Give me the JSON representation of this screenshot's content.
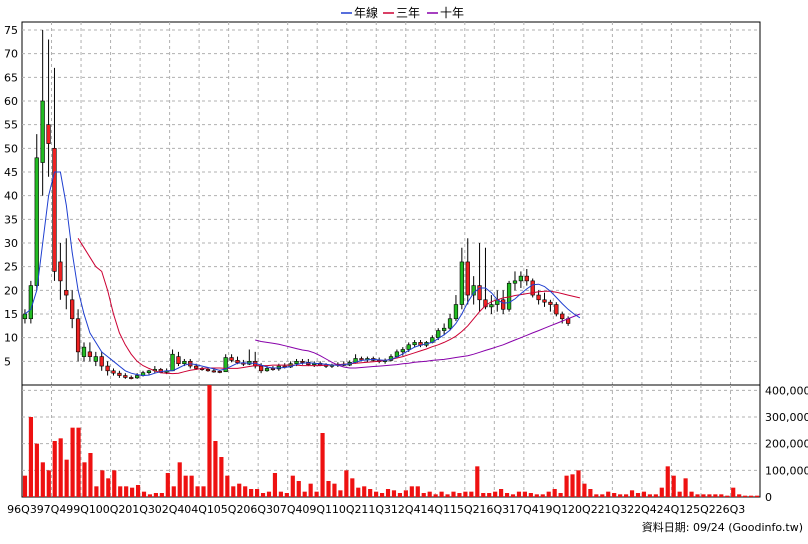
{
  "chart_data": {
    "type": "candlestick+bar",
    "legend": [
      "年線",
      "三年",
      "十年"
    ],
    "legend_colors": [
      "#1f3fd0",
      "#cc0033",
      "#8800aa"
    ],
    "price_axis": {
      "min": 0,
      "max": 75,
      "step": 5,
      "ticks": [
        "5",
        "10",
        "15",
        "20",
        "25",
        "30",
        "35",
        "40",
        "45",
        "50",
        "55",
        "60",
        "65",
        "70",
        "75"
      ]
    },
    "volume_axis": {
      "min": 0,
      "max": 400000,
      "step": 100000,
      "ticks": [
        "0",
        "100,000",
        "200,000",
        "300,000",
        "400,000"
      ]
    },
    "x_labels": [
      "96Q3",
      "97Q4",
      "99Q1",
      "00Q2",
      "01Q3",
      "02Q4",
      "04Q1",
      "05Q2",
      "06Q3",
      "07Q4",
      "09Q1",
      "10Q2",
      "11Q3",
      "12Q4",
      "14Q1",
      "15Q2",
      "16Q3",
      "17Q4",
      "19Q1",
      "20Q2",
      "21Q3",
      "22Q4",
      "24Q1",
      "25Q2",
      "26Q3"
    ],
    "quarters_per_label": 5,
    "candles": [
      {
        "o": 14,
        "h": 16,
        "l": 13,
        "c": 15
      },
      {
        "o": 14,
        "h": 22,
        "l": 13,
        "c": 21
      },
      {
        "o": 21,
        "h": 53,
        "l": 20,
        "c": 48
      },
      {
        "o": 47,
        "h": 75,
        "l": 40,
        "c": 60
      },
      {
        "o": 55,
        "h": 73,
        "l": 44,
        "c": 51
      },
      {
        "o": 50,
        "h": 67,
        "l": 22,
        "c": 24
      },
      {
        "o": 26,
        "h": 30,
        "l": 18,
        "c": 22
      },
      {
        "o": 20,
        "h": 31,
        "l": 16,
        "c": 19
      },
      {
        "o": 18,
        "h": 20,
        "l": 12,
        "c": 14
      },
      {
        "o": 14,
        "h": 16,
        "l": 5,
        "c": 7
      },
      {
        "o": 6,
        "h": 9,
        "l": 5,
        "c": 8
      },
      {
        "o": 7,
        "h": 9,
        "l": 5,
        "c": 6
      },
      {
        "o": 5,
        "h": 7,
        "l": 4,
        "c": 6
      },
      {
        "o": 6,
        "h": 7,
        "l": 3,
        "c": 4
      },
      {
        "o": 4,
        "h": 5,
        "l": 2,
        "c": 3
      },
      {
        "o": 3,
        "h": 3.5,
        "l": 2,
        "c": 2.5
      },
      {
        "o": 2.5,
        "h": 3,
        "l": 1.5,
        "c": 2
      },
      {
        "o": 2,
        "h": 2.5,
        "l": 1.3,
        "c": 1.6
      },
      {
        "o": 1.6,
        "h": 2,
        "l": 1.2,
        "c": 1.5
      },
      {
        "o": 1.5,
        "h": 2.5,
        "l": 1.3,
        "c": 2
      },
      {
        "o": 2,
        "h": 3,
        "l": 1.8,
        "c": 2.6
      },
      {
        "o": 2.6,
        "h": 3.2,
        "l": 2.2,
        "c": 3
      },
      {
        "o": 3,
        "h": 4,
        "l": 2.5,
        "c": 3.3
      },
      {
        "o": 3.3,
        "h": 3.6,
        "l": 2.5,
        "c": 2.7
      },
      {
        "o": 2.7,
        "h": 3.5,
        "l": 2.3,
        "c": 3
      },
      {
        "o": 3,
        "h": 7.5,
        "l": 3,
        "c": 6.5
      },
      {
        "o": 6,
        "h": 7,
        "l": 4,
        "c": 4.5
      },
      {
        "o": 4.5,
        "h": 5.5,
        "l": 4,
        "c": 5
      },
      {
        "o": 5,
        "h": 5.5,
        "l": 3.5,
        "c": 4
      },
      {
        "o": 4,
        "h": 4.5,
        "l": 3.2,
        "c": 3.5
      },
      {
        "o": 3.5,
        "h": 3.8,
        "l": 3,
        "c": 3.3
      },
      {
        "o": 3.3,
        "h": 3.6,
        "l": 2.8,
        "c": 3
      },
      {
        "o": 3,
        "h": 3.4,
        "l": 2.6,
        "c": 2.9
      },
      {
        "o": 2.9,
        "h": 3.2,
        "l": 2.5,
        "c": 2.8
      },
      {
        "o": 2.8,
        "h": 6.5,
        "l": 2.8,
        "c": 5.8
      },
      {
        "o": 5.8,
        "h": 6.5,
        "l": 4.8,
        "c": 5.2
      },
      {
        "o": 5.2,
        "h": 6,
        "l": 4.4,
        "c": 4.7
      },
      {
        "o": 4.7,
        "h": 5.3,
        "l": 4,
        "c": 4.4
      },
      {
        "o": 4.4,
        "h": 7.5,
        "l": 4.2,
        "c": 5
      },
      {
        "o": 5,
        "h": 7,
        "l": 3.5,
        "c": 4
      },
      {
        "o": 4,
        "h": 4.6,
        "l": 2.5,
        "c": 3
      },
      {
        "o": 3,
        "h": 4,
        "l": 2.8,
        "c": 3.5
      },
      {
        "o": 3.5,
        "h": 4,
        "l": 3,
        "c": 3.4
      },
      {
        "o": 3.4,
        "h": 4.5,
        "l": 3,
        "c": 4
      },
      {
        "o": 4,
        "h": 4.6,
        "l": 3.5,
        "c": 3.8
      },
      {
        "o": 3.8,
        "h": 5,
        "l": 3.6,
        "c": 4.5
      },
      {
        "o": 4.5,
        "h": 5.5,
        "l": 4,
        "c": 5
      },
      {
        "o": 5,
        "h": 5.5,
        "l": 4.3,
        "c": 4.8
      },
      {
        "o": 4.8,
        "h": 5.5,
        "l": 4,
        "c": 4.3
      },
      {
        "o": 4.3,
        "h": 5,
        "l": 3.8,
        "c": 4.6
      },
      {
        "o": 4.6,
        "h": 5,
        "l": 4,
        "c": 4.2
      },
      {
        "o": 4.2,
        "h": 4.6,
        "l": 3.6,
        "c": 4
      },
      {
        "o": 4,
        "h": 4.5,
        "l": 3.6,
        "c": 4.2
      },
      {
        "o": 4.2,
        "h": 4.8,
        "l": 3.8,
        "c": 4.4
      },
      {
        "o": 4.4,
        "h": 5,
        "l": 4,
        "c": 4.2
      },
      {
        "o": 4.2,
        "h": 5.2,
        "l": 4,
        "c": 4.8
      },
      {
        "o": 4.8,
        "h": 6.5,
        "l": 4.5,
        "c": 5.6
      },
      {
        "o": 5.6,
        "h": 6,
        "l": 5,
        "c": 5.3
      },
      {
        "o": 5.3,
        "h": 6,
        "l": 4.8,
        "c": 5.6
      },
      {
        "o": 5.6,
        "h": 6,
        "l": 5,
        "c": 5.2
      },
      {
        "o": 5.2,
        "h": 5.8,
        "l": 4.6,
        "c": 5
      },
      {
        "o": 5,
        "h": 5.6,
        "l": 4.5,
        "c": 5.2
      },
      {
        "o": 5.2,
        "h": 6.5,
        "l": 5,
        "c": 6
      },
      {
        "o": 6,
        "h": 7.5,
        "l": 5.6,
        "c": 7
      },
      {
        "o": 7,
        "h": 8,
        "l": 6.2,
        "c": 7.5
      },
      {
        "o": 7.5,
        "h": 9,
        "l": 7,
        "c": 8.5
      },
      {
        "o": 8.5,
        "h": 9.5,
        "l": 8,
        "c": 9
      },
      {
        "o": 9,
        "h": 9.5,
        "l": 8,
        "c": 8.4
      },
      {
        "o": 8.4,
        "h": 9.3,
        "l": 8,
        "c": 9
      },
      {
        "o": 9,
        "h": 10.5,
        "l": 8.8,
        "c": 10
      },
      {
        "o": 10,
        "h": 12,
        "l": 9.5,
        "c": 11.5
      },
      {
        "o": 11.5,
        "h": 13,
        "l": 10.5,
        "c": 12
      },
      {
        "o": 12,
        "h": 15,
        "l": 11.5,
        "c": 14
      },
      {
        "o": 14,
        "h": 19,
        "l": 13.5,
        "c": 17
      },
      {
        "o": 17,
        "h": 29,
        "l": 16,
        "c": 26
      },
      {
        "o": 26,
        "h": 31,
        "l": 17,
        "c": 19
      },
      {
        "o": 19,
        "h": 23,
        "l": 17,
        "c": 21
      },
      {
        "o": 21,
        "h": 30,
        "l": 15.5,
        "c": 18
      },
      {
        "o": 18,
        "h": 29,
        "l": 16,
        "c": 16.5
      },
      {
        "o": 16.5,
        "h": 19,
        "l": 15,
        "c": 17
      },
      {
        "o": 17,
        "h": 20,
        "l": 15.5,
        "c": 18
      },
      {
        "o": 18,
        "h": 20,
        "l": 15,
        "c": 16
      },
      {
        "o": 16,
        "h": 22,
        "l": 15.5,
        "c": 21.5
      },
      {
        "o": 21.5,
        "h": 24,
        "l": 20,
        "c": 22
      },
      {
        "o": 22,
        "h": 24,
        "l": 20.5,
        "c": 23
      },
      {
        "o": 23,
        "h": 24.5,
        "l": 21,
        "c": 22
      },
      {
        "o": 22,
        "h": 22.5,
        "l": 18.5,
        "c": 19
      },
      {
        "o": 19,
        "h": 20,
        "l": 17,
        "c": 18
      },
      {
        "o": 18,
        "h": 19.5,
        "l": 16.5,
        "c": 17.5
      },
      {
        "o": 17.5,
        "h": 18,
        "l": 15.5,
        "c": 17
      },
      {
        "o": 17,
        "h": 17.5,
        "l": 14.5,
        "c": 15
      },
      {
        "o": 15,
        "h": 15.5,
        "l": 13,
        "c": 14
      },
      {
        "o": 14,
        "h": 14.5,
        "l": 12.5,
        "c": 13
      }
    ],
    "ma_year": [
      15,
      16,
      20,
      30,
      40,
      45,
      45,
      38,
      28,
      20,
      15,
      11,
      9,
      7,
      6,
      5,
      4,
      3,
      2.5,
      2.2,
      2,
      2.1,
      2.5,
      2.8,
      3,
      3,
      3.6,
      4.2,
      4.5,
      4.3,
      4,
      3.7,
      3.4,
      3.1,
      3.4,
      4,
      4.6,
      4.7,
      4.6,
      4.6,
      4.2,
      3.8,
      3.6,
      3.6,
      3.7,
      3.9,
      4.3,
      4.6,
      4.7,
      4.6,
      4.5,
      4.4,
      4.2,
      4.2,
      4.3,
      4.5,
      4.8,
      5.2,
      5.3,
      5.4,
      5.3,
      5.2,
      5.4,
      5.9,
      6.6,
      7.3,
      8,
      8.4,
      8.7,
      9,
      9.8,
      10.6,
      11.6,
      13,
      15,
      17.5,
      19.5,
      20.5,
      20.5,
      19.5,
      18,
      17.3,
      17.4,
      18.2,
      19.3,
      20.3,
      21.2,
      21.3,
      20.8,
      19.8,
      18.5,
      17.2,
      16,
      15,
      14.2
    ],
    "ma_three": [
      null,
      null,
      null,
      null,
      null,
      null,
      null,
      null,
      null,
      31,
      29,
      27,
      25,
      24,
      20,
      15,
      11,
      8.5,
      6.5,
      5,
      4.1,
      3.5,
      3,
      2.6,
      2.5,
      2.4,
      2.5,
      2.8,
      3.1,
      3.3,
      3.5,
      3.6,
      3.6,
      3.6,
      3.5,
      3.5,
      3.5,
      3.7,
      3.9,
      4.1,
      4.1,
      4.1,
      4.2,
      4.2,
      4.2,
      4.2,
      4.2,
      4.1,
      4.1,
      4.1,
      4.1,
      4.2,
      4.2,
      4.3,
      4.4,
      4.5,
      4.6,
      4.7,
      4.8,
      4.9,
      5,
      5.2,
      5.4,
      5.7,
      6,
      6.4,
      6.8,
      7.2,
      7.6,
      8.1,
      8.5,
      9,
      9.6,
      10.3,
      11.3,
      12.5,
      14,
      15.5,
      16.8,
      17.6,
      18,
      18.4,
      18.6,
      18.9,
      19.1,
      19.3,
      19.5,
      19.7,
      19.8,
      19.8,
      19.6,
      19.3,
      19,
      18.7,
      18.4
    ],
    "ma_ten": [
      null,
      null,
      null,
      null,
      null,
      null,
      null,
      null,
      null,
      null,
      null,
      null,
      null,
      null,
      null,
      null,
      null,
      null,
      null,
      null,
      null,
      null,
      null,
      null,
      null,
      null,
      null,
      null,
      null,
      null,
      null,
      null,
      null,
      null,
      null,
      null,
      null,
      null,
      null,
      9.5,
      9.2,
      9,
      8.8,
      8.6,
      8.3,
      8,
      7.7,
      7.4,
      7.2,
      6.8,
      6.2,
      5.5,
      4.8,
      4.2,
      3.8,
      3.6,
      3.6,
      3.7,
      3.8,
      3.9,
      4,
      4.1,
      4.2,
      4.3,
      4.5,
      4.6,
      4.8,
      4.9,
      5,
      5.2,
      5.3,
      5.4,
      5.6,
      5.8,
      6,
      6.2,
      6.5,
      6.9,
      7.3,
      7.7,
      8.1,
      8.5,
      9,
      9.5,
      10,
      10.5,
      11,
      11.5,
      12,
      12.5,
      13,
      13.5,
      14,
      14.5,
      15
    ],
    "volume": [
      80000,
      300000,
      200000,
      130000,
      100000,
      210000,
      220000,
      140000,
      260000,
      260000,
      130000,
      165000,
      40000,
      100000,
      70000,
      100000,
      40000,
      40000,
      35000,
      45000,
      20000,
      10000,
      15000,
      15000,
      90000,
      40000,
      130000,
      80000,
      80000,
      40000,
      40000,
      420000,
      210000,
      150000,
      80000,
      40000,
      50000,
      40000,
      30000,
      30000,
      15000,
      20000,
      90000,
      20000,
      15000,
      80000,
      60000,
      20000,
      50000,
      20000,
      240000,
      60000,
      50000,
      25000,
      100000,
      70000,
      35000,
      40000,
      30000,
      20000,
      15000,
      30000,
      25000,
      15000,
      25000,
      40000,
      40000,
      15000,
      20000,
      10000,
      20000,
      10000,
      20000,
      15000,
      20000,
      20000,
      115000,
      15000,
      15000,
      20000,
      30000,
      15000,
      10000,
      20000,
      20000,
      15000,
      10000,
      10000,
      20000,
      30000,
      15000,
      80000,
      85000,
      100000,
      50000,
      30000,
      10000,
      10000,
      20000,
      15000,
      10000,
      10000,
      25000,
      15000,
      20000,
      10000,
      10000,
      35000,
      115000,
      80000,
      20000,
      70000,
      20000,
      10000,
      10000,
      10000,
      10000,
      10000,
      5000,
      35000,
      10000,
      5000,
      5000,
      5000
    ],
    "footer_note": "資料日期: 09/24 (Goodinfo.tw)"
  }
}
